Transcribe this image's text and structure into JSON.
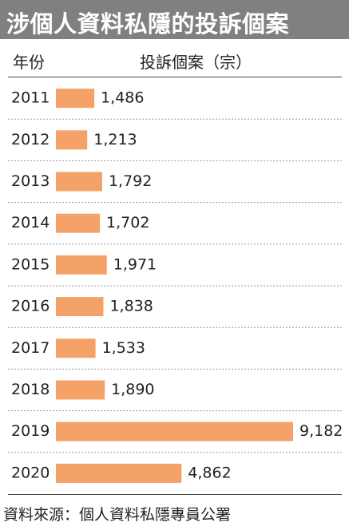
{
  "title": "涉個人資料私隱的投訴個案",
  "header": {
    "year_label": "年份",
    "value_label": "投訴個案（宗）"
  },
  "source": "資料來源：個人資料私隱專員公署",
  "colors": {
    "bar": "#F4A268",
    "title_bg": "#808080",
    "separator": "#9a9a9a"
  },
  "chart_data": {
    "type": "bar",
    "orientation": "horizontal",
    "title": "涉個人資料私隱的投訴個案",
    "xlabel": "投訴個案（宗）",
    "ylabel": "年份",
    "categories": [
      "2011",
      "2012",
      "2013",
      "2014",
      "2015",
      "2016",
      "2017",
      "2018",
      "2019",
      "2020"
    ],
    "values": [
      1486,
      1213,
      1792,
      1702,
      1971,
      1838,
      1533,
      1890,
      9182,
      4862
    ],
    "value_labels": [
      "1,486",
      "1,213",
      "1,792",
      "1,702",
      "1,971",
      "1,838",
      "1,533",
      "1,890",
      "9,182",
      "4,862"
    ],
    "grid": false,
    "legend": false
  }
}
